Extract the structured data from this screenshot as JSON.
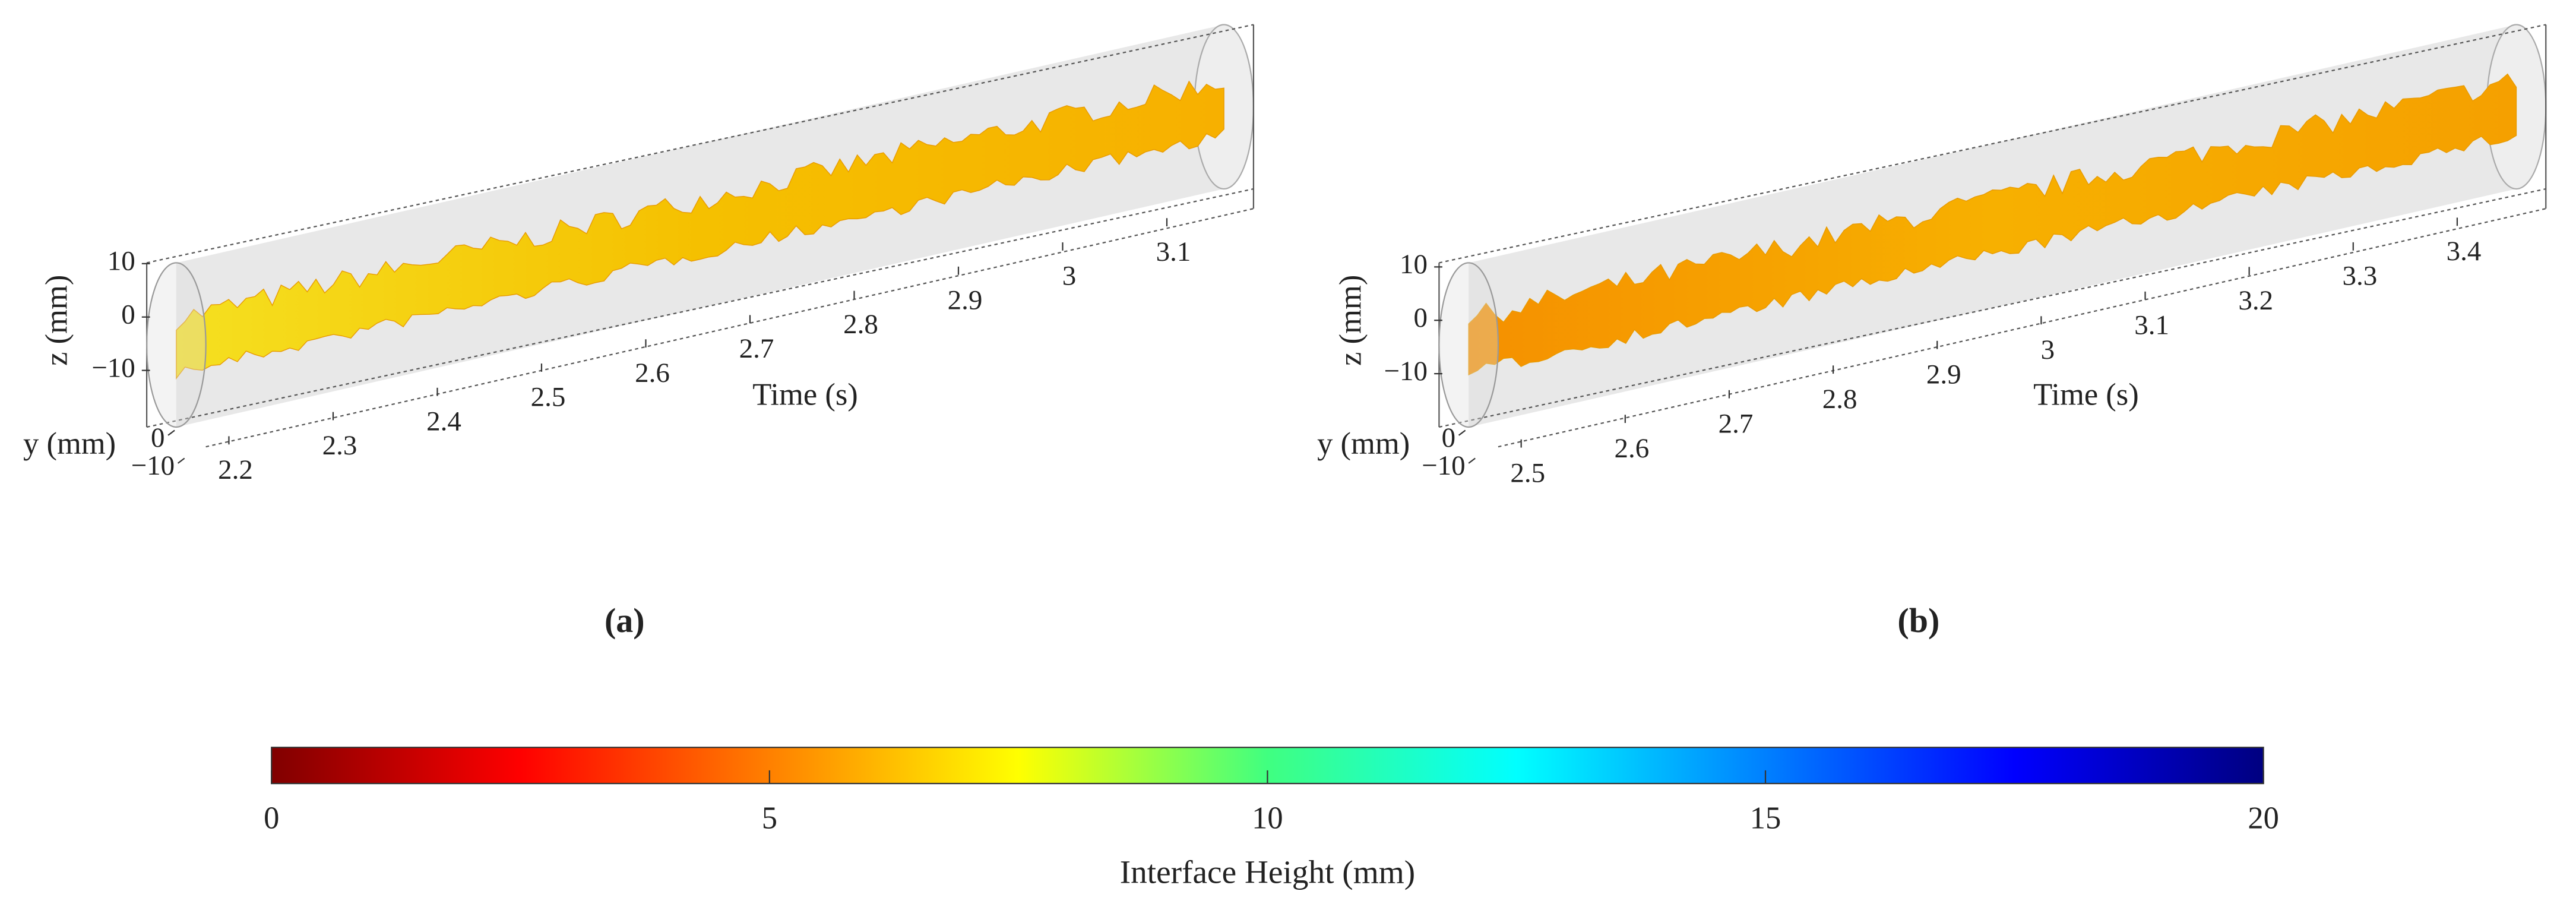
{
  "panels": [
    {
      "label": "(a)",
      "xlabel": "Time (s)",
      "ylabel": "y (mm)",
      "zlabel": "z (mm)",
      "xlim": [
        2.17,
        3.18
      ],
      "xticks": [
        2.2,
        2.3,
        2.4,
        2.5,
        2.6,
        2.7,
        2.8,
        2.9,
        3,
        3.1
      ],
      "ylim": [
        -12,
        12
      ],
      "yticks": [
        {
          "value": -10,
          "label": "−10"
        },
        0
      ],
      "zlim": [
        -12,
        12
      ],
      "zticks": [
        {
          "value": -10,
          "label": "−10"
        },
        0,
        10
      ]
    },
    {
      "label": "(b)",
      "xlabel": "Time (s)",
      "ylabel": "y (mm)",
      "zlabel": "z (mm)",
      "xlim": [
        2.47,
        3.49
      ],
      "xticks": [
        2.5,
        2.6,
        2.7,
        2.8,
        2.9,
        3,
        3.1,
        3.2,
        3.3,
        3.4
      ],
      "ylim": [
        -12,
        12
      ],
      "yticks": [
        {
          "value": -10,
          "label": "−10"
        },
        0
      ],
      "zlim": [
        -12,
        12
      ],
      "zticks": [
        {
          "value": -10,
          "label": "−10"
        },
        0,
        10
      ]
    }
  ],
  "colorbar": {
    "label": "Interface Height (mm)",
    "lim": [
      0,
      20
    ],
    "ticks": [
      0,
      5,
      10,
      15,
      20
    ],
    "colors": [
      "#800000",
      "#ff0000",
      "#ff8000",
      "#ffff00",
      "#40ff80",
      "#00ffff",
      "#0080ff",
      "#0000ff",
      "#000080"
    ]
  }
}
